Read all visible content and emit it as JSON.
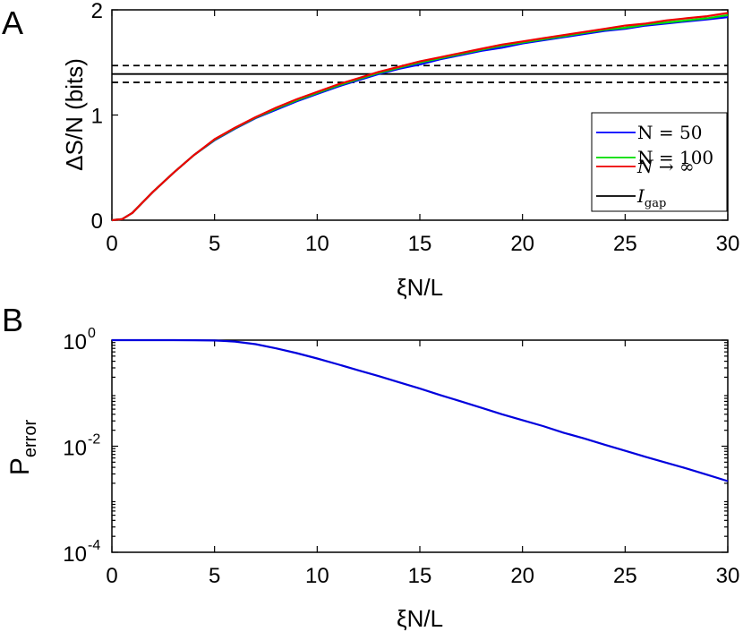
{
  "chart_data": [
    {
      "panel_label": "A",
      "type": "line",
      "xlabel": "ξN/L",
      "ylabel": "ΔS/N (bits)",
      "xlim": [
        0,
        30
      ],
      "ylim": [
        0,
        2
      ],
      "xticks": [
        0,
        5,
        10,
        15,
        20,
        25,
        30
      ],
      "yticks": [
        0,
        1,
        2
      ],
      "legend_position": "right",
      "grid": false,
      "series": [
        {
          "name": "N = 50",
          "color": "#0000ff",
          "x": [
            0,
            0.5,
            1,
            1.5,
            2,
            3,
            4,
            5,
            6,
            7,
            8,
            9,
            10,
            11,
            12,
            13,
            14,
            15,
            16,
            17,
            18,
            19,
            20,
            21,
            22,
            23,
            24,
            25,
            26,
            27,
            28,
            29,
            30
          ],
          "y": [
            0,
            0.01,
            0.07,
            0.17,
            0.27,
            0.45,
            0.62,
            0.76,
            0.87,
            0.97,
            1.05,
            1.13,
            1.2,
            1.27,
            1.33,
            1.39,
            1.44,
            1.48,
            1.53,
            1.57,
            1.61,
            1.64,
            1.68,
            1.71,
            1.74,
            1.77,
            1.8,
            1.82,
            1.85,
            1.87,
            1.89,
            1.91,
            1.93
          ]
        },
        {
          "name": "N = 100",
          "color": "#00dd00",
          "x": [
            0,
            0.5,
            1,
            1.5,
            2,
            3,
            4,
            5,
            6,
            7,
            8,
            9,
            10,
            11,
            12,
            13,
            14,
            15,
            16,
            17,
            18,
            19,
            20,
            21,
            22,
            23,
            24,
            25,
            26,
            27,
            28,
            29,
            30
          ],
          "y": [
            0,
            0.01,
            0.07,
            0.17,
            0.27,
            0.45,
            0.62,
            0.765,
            0.875,
            0.975,
            1.06,
            1.14,
            1.21,
            1.28,
            1.34,
            1.4,
            1.45,
            1.5,
            1.54,
            1.58,
            1.62,
            1.66,
            1.69,
            1.72,
            1.75,
            1.78,
            1.81,
            1.83,
            1.86,
            1.88,
            1.9,
            1.92,
            1.95
          ]
        },
        {
          "name": "N → ∞",
          "color": "#ee0000",
          "x": [
            0,
            0.5,
            1,
            1.5,
            2,
            3,
            4,
            5,
            6,
            7,
            8,
            9,
            10,
            11,
            12,
            13,
            14,
            15,
            16,
            17,
            18,
            19,
            20,
            21,
            22,
            23,
            24,
            25,
            26,
            27,
            28,
            29,
            30
          ],
          "y": [
            0,
            0.01,
            0.07,
            0.17,
            0.27,
            0.45,
            0.62,
            0.77,
            0.88,
            0.98,
            1.07,
            1.15,
            1.22,
            1.29,
            1.35,
            1.41,
            1.46,
            1.51,
            1.55,
            1.59,
            1.63,
            1.67,
            1.7,
            1.73,
            1.76,
            1.79,
            1.82,
            1.85,
            1.87,
            1.9,
            1.92,
            1.94,
            1.97
          ]
        },
        {
          "name": "Igap",
          "color": "#000000",
          "type": "hline",
          "y": 1.39,
          "band": [
            1.31,
            1.47
          ]
        }
      ]
    },
    {
      "panel_label": "B",
      "type": "line",
      "xlabel": "ξN/L",
      "ylabel_main": "P",
      "ylabel_sub": "error",
      "yscale": "log",
      "xlim": [
        0,
        30
      ],
      "ylim": [
        0.0001,
        1
      ],
      "xticks": [
        0,
        5,
        10,
        15,
        20,
        25,
        30
      ],
      "yticks": [
        {
          "value": 1,
          "base": "10",
          "exp": "0"
        },
        {
          "value": 0.01,
          "base": "10",
          "exp": "-2"
        },
        {
          "value": 0.0001,
          "base": "10",
          "exp": "-4"
        }
      ],
      "grid": false,
      "series": [
        {
          "name": "",
          "color": "#0000dd",
          "x": [
            0,
            1,
            2,
            3,
            4,
            5,
            6,
            7,
            8,
            9,
            10,
            11,
            12,
            13,
            14,
            15,
            16,
            17,
            18,
            19,
            20,
            21,
            22,
            23,
            24,
            25,
            26,
            27,
            28,
            29,
            30
          ],
          "y": [
            1,
            1,
            1,
            1,
            0.995,
            0.985,
            0.94,
            0.84,
            0.7,
            0.57,
            0.45,
            0.35,
            0.27,
            0.21,
            0.16,
            0.122,
            0.092,
            0.07,
            0.053,
            0.04,
            0.031,
            0.024,
            0.018,
            0.014,
            0.0107,
            0.0082,
            0.0063,
            0.0049,
            0.0038,
            0.0029,
            0.0022
          ]
        }
      ]
    }
  ]
}
